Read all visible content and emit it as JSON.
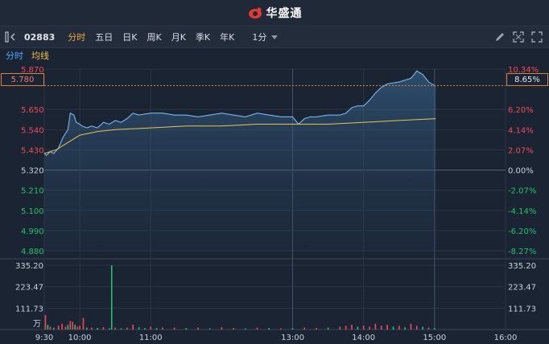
{
  "app": {
    "brand": "华盛通"
  },
  "toolbar": {
    "code": "02883",
    "tabs": [
      {
        "label": "分时",
        "active": true
      },
      {
        "label": "五日"
      },
      {
        "label": "日K"
      },
      {
        "label": "周K"
      },
      {
        "label": "月K"
      },
      {
        "label": "季K"
      },
      {
        "label": "年K"
      }
    ],
    "interval": "1分",
    "icons": [
      "pen-icon",
      "expand-icon",
      "fullscreen-icon"
    ]
  },
  "legend": {
    "intraday": "分时",
    "avg": "均线"
  },
  "colors": {
    "up": "#f24957",
    "down": "#25c26b",
    "price": "#7ec4ff",
    "avg": "#f0c24a",
    "accent": "#f0a63a"
  },
  "price_box": "5.780",
  "pct_box": "8.65%",
  "chart_data": {
    "type": "line",
    "title": "",
    "prev_close": 5.32,
    "y_ticks_left": [
      "5.870",
      "5.650",
      "5.540",
      "5.430",
      "5.320",
      "5.210",
      "5.100",
      "4.990",
      "4.880"
    ],
    "y_ticks_right": [
      "10.34%",
      "6.20%",
      "4.14%",
      "2.07%",
      "0.00%",
      "-2.07%",
      "-4.14%",
      "-6.20%",
      "-8.27%"
    ],
    "x_ticks": [
      "9:30",
      "10:00",
      "11:00",
      "13:00",
      "14:00",
      "15:00",
      "16:00"
    ],
    "ylim": [
      4.88,
      5.87
    ],
    "series": [
      {
        "minutes": [
          0,
          2,
          5,
          8,
          12,
          16,
          20,
          22,
          25,
          27,
          30,
          32,
          36,
          40,
          45,
          50,
          55,
          60,
          65,
          70,
          75,
          80,
          90,
          100,
          110,
          120,
          130,
          140,
          150,
          160,
          170,
          180,
          190,
          200,
          210,
          215,
          220,
          225,
          230,
          240,
          250,
          255,
          260,
          265,
          270,
          275,
          280,
          285,
          290,
          300,
          310,
          315,
          320,
          325,
          330,
          331
        ],
        "values": [
          5.41,
          5.4,
          5.42,
          5.41,
          5.44,
          5.5,
          5.54,
          5.63,
          5.62,
          5.58,
          5.57,
          5.56,
          5.55,
          5.56,
          5.55,
          5.58,
          5.57,
          5.59,
          5.58,
          5.6,
          5.63,
          5.62,
          5.63,
          5.63,
          5.62,
          5.62,
          5.61,
          5.62,
          5.63,
          5.62,
          5.61,
          5.63,
          5.62,
          5.61,
          5.61,
          5.57,
          5.6,
          5.61,
          5.61,
          5.62,
          5.62,
          5.63,
          5.66,
          5.67,
          5.67,
          5.7,
          5.74,
          5.77,
          5.79,
          5.8,
          5.82,
          5.86,
          5.84,
          5.8,
          5.78,
          5.78
        ]
      },
      {
        "minutes": [
          0,
          10,
          20,
          30,
          45,
          60,
          90,
          120,
          150,
          180,
          210,
          240,
          270,
          300,
          331
        ],
        "values": [
          5.41,
          5.43,
          5.47,
          5.51,
          5.53,
          5.54,
          5.55,
          5.56,
          5.56,
          5.57,
          5.57,
          5.57,
          5.58,
          5.59,
          5.6
        ]
      }
    ],
    "volume": {
      "ticks": [
        "335.20",
        "223.47",
        "111.73"
      ],
      "unit": "万",
      "max": 335.2,
      "bars": [
        {
          "m": 1,
          "v": 75,
          "up": true
        },
        {
          "m": 3,
          "v": 25,
          "up": false
        },
        {
          "m": 5,
          "v": 15,
          "up": true
        },
        {
          "m": 8,
          "v": 10,
          "up": false
        },
        {
          "m": 12,
          "v": 20,
          "up": true
        },
        {
          "m": 15,
          "v": 30,
          "up": true
        },
        {
          "m": 18,
          "v": 15,
          "up": true
        },
        {
          "m": 20,
          "v": 25,
          "up": false
        },
        {
          "m": 22,
          "v": 45,
          "up": true
        },
        {
          "m": 24,
          "v": 40,
          "up": true
        },
        {
          "m": 26,
          "v": 25,
          "up": false
        },
        {
          "m": 28,
          "v": 15,
          "up": true
        },
        {
          "m": 30,
          "v": 20,
          "up": true
        },
        {
          "m": 33,
          "v": 60,
          "up": true
        },
        {
          "m": 36,
          "v": 10,
          "up": false
        },
        {
          "m": 40,
          "v": 10,
          "up": true
        },
        {
          "m": 45,
          "v": 8,
          "up": false
        },
        {
          "m": 50,
          "v": 12,
          "up": true
        },
        {
          "m": 55,
          "v": 6,
          "up": false
        },
        {
          "m": 57,
          "v": 335,
          "up": false
        },
        {
          "m": 60,
          "v": 10,
          "up": true
        },
        {
          "m": 65,
          "v": 6,
          "up": false
        },
        {
          "m": 70,
          "v": 10,
          "up": true
        },
        {
          "m": 75,
          "v": 25,
          "up": true
        },
        {
          "m": 80,
          "v": 12,
          "up": false
        },
        {
          "m": 85,
          "v": 8,
          "up": false
        },
        {
          "m": 90,
          "v": 15,
          "up": true
        },
        {
          "m": 95,
          "v": 8,
          "up": false
        },
        {
          "m": 100,
          "v": 10,
          "up": true
        },
        {
          "m": 110,
          "v": 10,
          "up": true
        },
        {
          "m": 120,
          "v": 8,
          "up": false
        },
        {
          "m": 130,
          "v": 10,
          "up": true
        },
        {
          "m": 140,
          "v": 6,
          "up": false
        },
        {
          "m": 150,
          "v": 12,
          "up": true
        },
        {
          "m": 160,
          "v": 8,
          "up": true
        },
        {
          "m": 170,
          "v": 6,
          "up": false
        },
        {
          "m": 180,
          "v": 10,
          "up": true
        },
        {
          "m": 190,
          "v": 8,
          "up": false
        },
        {
          "m": 200,
          "v": 6,
          "up": true
        },
        {
          "m": 210,
          "v": 8,
          "up": false
        },
        {
          "m": 220,
          "v": 10,
          "up": true
        },
        {
          "m": 230,
          "v": 8,
          "up": true
        },
        {
          "m": 240,
          "v": 10,
          "up": false
        },
        {
          "m": 250,
          "v": 15,
          "up": true
        },
        {
          "m": 255,
          "v": 20,
          "up": true
        },
        {
          "m": 260,
          "v": 25,
          "up": true
        },
        {
          "m": 265,
          "v": 15,
          "up": false
        },
        {
          "m": 270,
          "v": 20,
          "up": true
        },
        {
          "m": 275,
          "v": 15,
          "up": true
        },
        {
          "m": 280,
          "v": 30,
          "up": true
        },
        {
          "m": 285,
          "v": 20,
          "up": true
        },
        {
          "m": 290,
          "v": 25,
          "up": true
        },
        {
          "m": 295,
          "v": 15,
          "up": false
        },
        {
          "m": 300,
          "v": 20,
          "up": true
        },
        {
          "m": 305,
          "v": 12,
          "up": false
        },
        {
          "m": 310,
          "v": 30,
          "up": true
        },
        {
          "m": 315,
          "v": 20,
          "up": true
        },
        {
          "m": 320,
          "v": 15,
          "up": false
        },
        {
          "m": 325,
          "v": 10,
          "up": true
        },
        {
          "m": 330,
          "v": 8,
          "up": false
        }
      ]
    }
  }
}
